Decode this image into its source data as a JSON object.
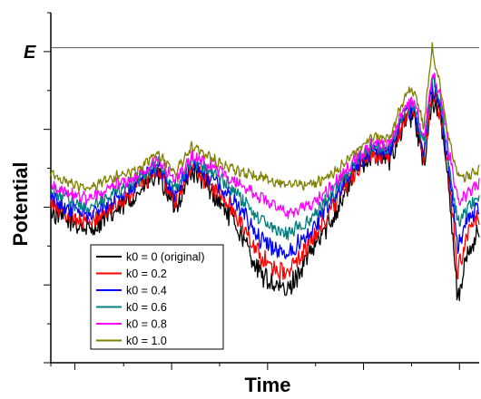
{
  "chart_data": {
    "type": "line",
    "title": "",
    "xlabel": "Time",
    "ylabel": "Potential",
    "x_tick_labels": [],
    "y_tick_labels": [],
    "xlim": [
      0,
      100
    ],
    "ylim": [
      0,
      100
    ],
    "grid": false,
    "legend_position": "bottom-left",
    "reference_lines": [
      {
        "label": "E",
        "y": 90,
        "color": "#555555"
      }
    ],
    "x": [
      0,
      5,
      9,
      15,
      20,
      25,
      29,
      33,
      38,
      43,
      49,
      55,
      61,
      66,
      71,
      75,
      79,
      83,
      85,
      87,
      89,
      91,
      93,
      95,
      97,
      100
    ],
    "series": [
      {
        "name": "k0 = 0 (original)",
        "color": "#000000",
        "values": [
          43,
          40,
          38,
          43,
          48,
          54,
          44,
          55,
          48,
          40,
          25,
          20,
          32,
          42,
          54,
          60,
          58,
          70,
          70,
          56,
          75,
          70,
          50,
          18,
          30,
          38
        ]
      },
      {
        "name": "k0 = 0.2",
        "color": "#ff0000",
        "values": [
          45,
          42,
          40,
          45,
          50,
          55,
          46,
          56,
          50,
          43,
          30,
          25,
          35,
          45,
          55,
          60,
          59,
          71,
          71,
          58,
          77,
          71,
          52,
          26,
          36,
          42
        ]
      },
      {
        "name": "k0 = 0.4",
        "color": "#0000ff",
        "values": [
          47,
          44,
          42,
          47,
          51,
          56,
          48,
          57,
          52,
          46,
          35,
          31,
          38,
          47,
          56,
          61,
          60,
          72,
          72,
          60,
          79,
          73,
          55,
          33,
          40,
          45
        ]
      },
      {
        "name": "k0 = 0.6",
        "color": "#008080",
        "values": [
          49,
          46,
          44,
          49,
          52,
          57,
          50,
          58,
          54,
          49,
          41,
          37,
          41,
          49,
          57,
          62,
          61,
          73,
          73,
          62,
          81,
          74,
          57,
          40,
          44,
          48
        ]
      },
      {
        "name": "k0 = 0.8",
        "color": "#ff00ff",
        "values": [
          51,
          48,
          47,
          51,
          53,
          58,
          52,
          59,
          56,
          52,
          47,
          43,
          45,
          51,
          58,
          63,
          62,
          74,
          74,
          64,
          83,
          76,
          60,
          46,
          48,
          51
        ]
      },
      {
        "name": "k0 = 1.0",
        "color": "#808000",
        "values": [
          54,
          51,
          50,
          53,
          55,
          60,
          54,
          62,
          58,
          55,
          53,
          51,
          51,
          54,
          60,
          65,
          64,
          77,
          78,
          67,
          90,
          78,
          63,
          54,
          53,
          55
        ]
      }
    ]
  }
}
